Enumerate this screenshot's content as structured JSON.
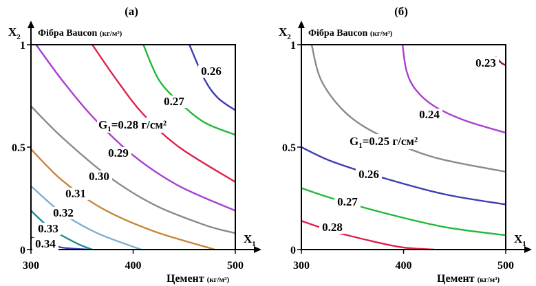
{
  "chart_data": [
    {
      "type": "contour",
      "panel_label": "(а)",
      "x_symbol": "X",
      "x_subscript": "1",
      "y_symbol": "X",
      "y_subscript": "2",
      "x_axis_title": "Цемент",
      "x_axis_unit": "(кг/м³)",
      "y_axis_title": "Фібра Baucon",
      "y_axis_unit": "(кг/м³)",
      "x_ticks": [
        "300",
        "400",
        "500"
      ],
      "y_ticks": [
        "0",
        "0.5",
        "1"
      ],
      "xlim": [
        300,
        500
      ],
      "ylim": [
        0,
        1
      ],
      "contours": [
        {
          "level": "0.26",
          "color": "#3b3bb5",
          "points": [
            [
              455,
              1.0
            ],
            [
              470,
              0.83
            ],
            [
              483,
              0.74
            ],
            [
              500,
              0.68
            ]
          ]
        },
        {
          "level": "0.27",
          "color": "#22b83a",
          "points": [
            [
              410,
              1.0
            ],
            [
              425,
              0.83
            ],
            [
              445,
              0.72
            ],
            [
              470,
              0.62
            ],
            [
              500,
              0.56
            ]
          ]
        },
        {
          "level": "0.28",
          "color": "#e0204a",
          "points": [
            [
              360,
              1.0
            ],
            [
              385,
              0.82
            ],
            [
              410,
              0.66
            ],
            [
              445,
              0.5
            ],
            [
              500,
              0.33
            ]
          ]
        },
        {
          "level": "0.29",
          "color": "#a83fd0",
          "points": [
            [
              305,
              1.0
            ],
            [
              330,
              0.83
            ],
            [
              360,
              0.65
            ],
            [
              400,
              0.46
            ],
            [
              445,
              0.31
            ],
            [
              500,
              0.19
            ]
          ]
        },
        {
          "level": "0.30",
          "color": "#8a8a8a",
          "points": [
            [
              300,
              0.7
            ],
            [
              330,
              0.55
            ],
            [
              375,
              0.36
            ],
            [
              420,
              0.22
            ],
            [
              470,
              0.12
            ],
            [
              500,
              0.08
            ]
          ]
        },
        {
          "level": "0.31",
          "color": "#c8863a",
          "points": [
            [
              300,
              0.49
            ],
            [
              330,
              0.34
            ],
            [
              370,
              0.2
            ],
            [
              420,
              0.09
            ],
            [
              480,
              0.0
            ]
          ]
        },
        {
          "level": "0.32",
          "color": "#7faed0",
          "points": [
            [
              300,
              0.31
            ],
            [
              330,
              0.18
            ],
            [
              365,
              0.08
            ],
            [
              408,
              0.0
            ]
          ]
        },
        {
          "level": "0.33",
          "color": "#1e8a8a",
          "points": [
            [
              300,
              0.19
            ],
            [
              320,
              0.1
            ],
            [
              345,
              0.03
            ],
            [
              360,
              0.0
            ]
          ]
        },
        {
          "level": "0.34",
          "color": "#3b3bb5",
          "points": [
            [
              300,
              0.06
            ],
            [
              318,
              0.03
            ],
            [
              330,
              0.01
            ],
            [
              355,
              0.0
            ]
          ]
        }
      ],
      "annotation": {
        "symbol": "G",
        "subscript": "1",
        "text": "=0.28 г/см²"
      }
    },
    {
      "type": "contour",
      "panel_label": "(б)",
      "x_symbol": "X",
      "x_subscript": "1",
      "y_symbol": "X",
      "y_subscript": "2",
      "x_axis_title": "Цемент",
      "x_axis_unit": "(кг/м³)",
      "y_axis_title": "Фібра Baucon",
      "y_axis_unit": "(кг/м³)",
      "x_ticks": [
        "300",
        "400",
        "500"
      ],
      "y_ticks": [
        "0",
        "0.5",
        "1"
      ],
      "xlim": [
        300,
        500
      ],
      "ylim": [
        0,
        1
      ],
      "contours": [
        {
          "level": "0.23",
          "color": "#8b1a1a",
          "points": [
            [
              490,
              0.94
            ],
            [
              496,
              0.91
            ],
            [
              500,
              0.9
            ]
          ]
        },
        {
          "level": "0.24",
          "color": "#a83fd0",
          "points": [
            [
              399,
              1.0
            ],
            [
              403,
              0.87
            ],
            [
              412,
              0.78
            ],
            [
              430,
              0.7
            ],
            [
              460,
              0.63
            ],
            [
              500,
              0.57
            ]
          ]
        },
        {
          "level": "0.25",
          "color": "#8a8a8a",
          "points": [
            [
              310,
              1.0
            ],
            [
              320,
              0.82
            ],
            [
              345,
              0.66
            ],
            [
              380,
              0.55
            ],
            [
              430,
              0.45
            ],
            [
              500,
              0.38
            ]
          ]
        },
        {
          "level": "0.26",
          "color": "#3b3bb5",
          "points": [
            [
              300,
              0.5
            ],
            [
              330,
              0.43
            ],
            [
              380,
              0.35
            ],
            [
              440,
              0.27
            ],
            [
              500,
              0.22
            ]
          ]
        },
        {
          "level": "0.27",
          "color": "#22b83a",
          "points": [
            [
              300,
              0.3
            ],
            [
              330,
              0.25
            ],
            [
              380,
              0.18
            ],
            [
              440,
              0.11
            ],
            [
              500,
              0.07
            ]
          ]
        },
        {
          "level": "0.28",
          "color": "#e0204a",
          "points": [
            [
              300,
              0.14
            ],
            [
              330,
              0.09
            ],
            [
              370,
              0.04
            ],
            [
              400,
              0.01
            ],
            [
              430,
              0.0
            ]
          ]
        }
      ],
      "annotation": {
        "symbol": "G",
        "subscript": "1",
        "text": "=0.25 г/см²"
      }
    }
  ]
}
